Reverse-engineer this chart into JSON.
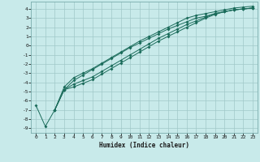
{
  "background_color": "#c8eaea",
  "grid_color": "#a0c8c8",
  "line_color": "#1a6b5a",
  "xlabel": "Humidex (Indice chaleur)",
  "xlim": [
    -0.5,
    23.5
  ],
  "ylim": [
    -9.5,
    4.8
  ],
  "yticks": [
    4,
    3,
    2,
    1,
    0,
    -1,
    -2,
    -3,
    -4,
    -5,
    -6,
    -7,
    -8,
    -9
  ],
  "xticks": [
    0,
    1,
    2,
    3,
    4,
    5,
    6,
    7,
    8,
    9,
    10,
    11,
    12,
    13,
    14,
    15,
    16,
    17,
    18,
    19,
    20,
    21,
    22,
    23
  ],
  "line1_x": [
    0,
    1,
    2,
    3,
    4,
    5,
    6,
    7,
    8,
    9,
    10,
    11,
    12,
    13,
    14,
    15,
    16,
    17,
    18,
    19,
    20,
    21,
    22,
    23
  ],
  "line1_y": [
    -6.5,
    -8.8,
    -7.0,
    -4.8,
    -3.8,
    -3.2,
    -2.6,
    -2.0,
    -1.4,
    -0.8,
    -0.2,
    0.3,
    0.8,
    1.3,
    1.8,
    2.2,
    2.6,
    3.0,
    3.2,
    3.5,
    3.7,
    3.9,
    4.0,
    4.1
  ],
  "line2_x": [
    2,
    3,
    4,
    5,
    6,
    7,
    8,
    9,
    10,
    11,
    12,
    13,
    14,
    15,
    16,
    17,
    18,
    19,
    20,
    21,
    22,
    23
  ],
  "line2_y": [
    -7.0,
    -4.5,
    -3.5,
    -3.0,
    -2.5,
    -1.9,
    -1.3,
    -0.7,
    -0.1,
    0.5,
    1.0,
    1.5,
    2.0,
    2.5,
    3.0,
    3.3,
    3.5,
    3.7,
    3.9,
    4.1,
    4.2,
    4.3
  ],
  "line3_x": [
    2,
    3,
    4,
    5,
    6,
    7,
    8,
    9,
    10,
    11,
    12,
    13,
    14,
    15,
    16,
    17,
    18,
    19,
    20,
    21,
    22,
    23
  ],
  "line3_y": [
    -7.0,
    -4.8,
    -4.2,
    -3.8,
    -3.4,
    -2.8,
    -2.2,
    -1.6,
    -1.0,
    -0.4,
    0.2,
    0.8,
    1.3,
    1.8,
    2.3,
    2.7,
    3.1,
    3.5,
    3.7,
    3.9,
    4.0,
    4.1
  ],
  "line4_x": [
    2,
    3,
    4,
    5,
    6,
    7,
    8,
    9,
    10,
    11,
    12,
    13,
    14,
    15,
    16,
    17,
    18,
    19,
    20,
    21,
    22,
    23
  ],
  "line4_y": [
    -7.0,
    -4.8,
    -4.5,
    -4.1,
    -3.7,
    -3.1,
    -2.5,
    -1.9,
    -1.3,
    -0.7,
    -0.1,
    0.5,
    1.0,
    1.5,
    2.0,
    2.5,
    3.0,
    3.4,
    3.7,
    3.9,
    4.0,
    4.1
  ]
}
